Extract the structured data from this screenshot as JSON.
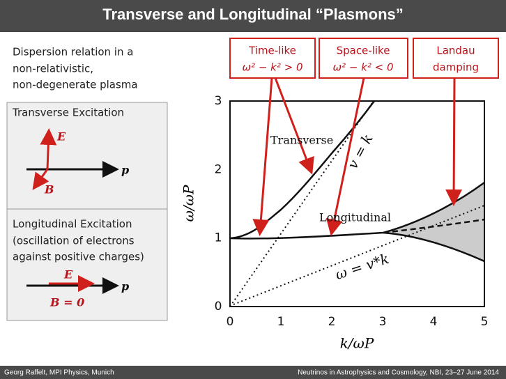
{
  "header": {
    "title": "Transverse and Longitudinal “Plasmons”"
  },
  "intro": {
    "lines": [
      "Dispersion relation in a",
      "non-relativistic,",
      "non-degenerate plasma"
    ]
  },
  "panels": [
    {
      "title_lines": [
        "Transverse Excitation"
      ],
      "labels": [
        "E",
        "p",
        "B"
      ]
    },
    {
      "title_lines": [
        "Longitudinal Excitation",
        "(oscillation of electrons",
        " against positive charges)"
      ],
      "labels": [
        "E",
        "p",
        "B = 0"
      ]
    }
  ],
  "callouts": [
    {
      "lines": [
        "Time-like",
        "ω² − k² > 0"
      ]
    },
    {
      "lines": [
        "Space-like",
        "ω² − k² < 0"
      ]
    },
    {
      "lines": [
        "Landau",
        "damping"
      ]
    }
  ],
  "figure": {
    "x_label": "k/ωP",
    "y_label": "ω/ωP",
    "xticks": [
      "0",
      "1",
      "2",
      "3",
      "4",
      "5"
    ],
    "yticks": [
      "0",
      "1",
      "2",
      "3"
    ],
    "curve_labels": [
      "Transverse",
      "Longitudinal",
      "v = k",
      "ω = v*k"
    ]
  },
  "footer": {
    "left": "Georg Raffelt, MPI Physics, Munich",
    "right": "Neutrinos in Astrophysics and Cosmology, NBI, 23–27 June 2014"
  }
}
